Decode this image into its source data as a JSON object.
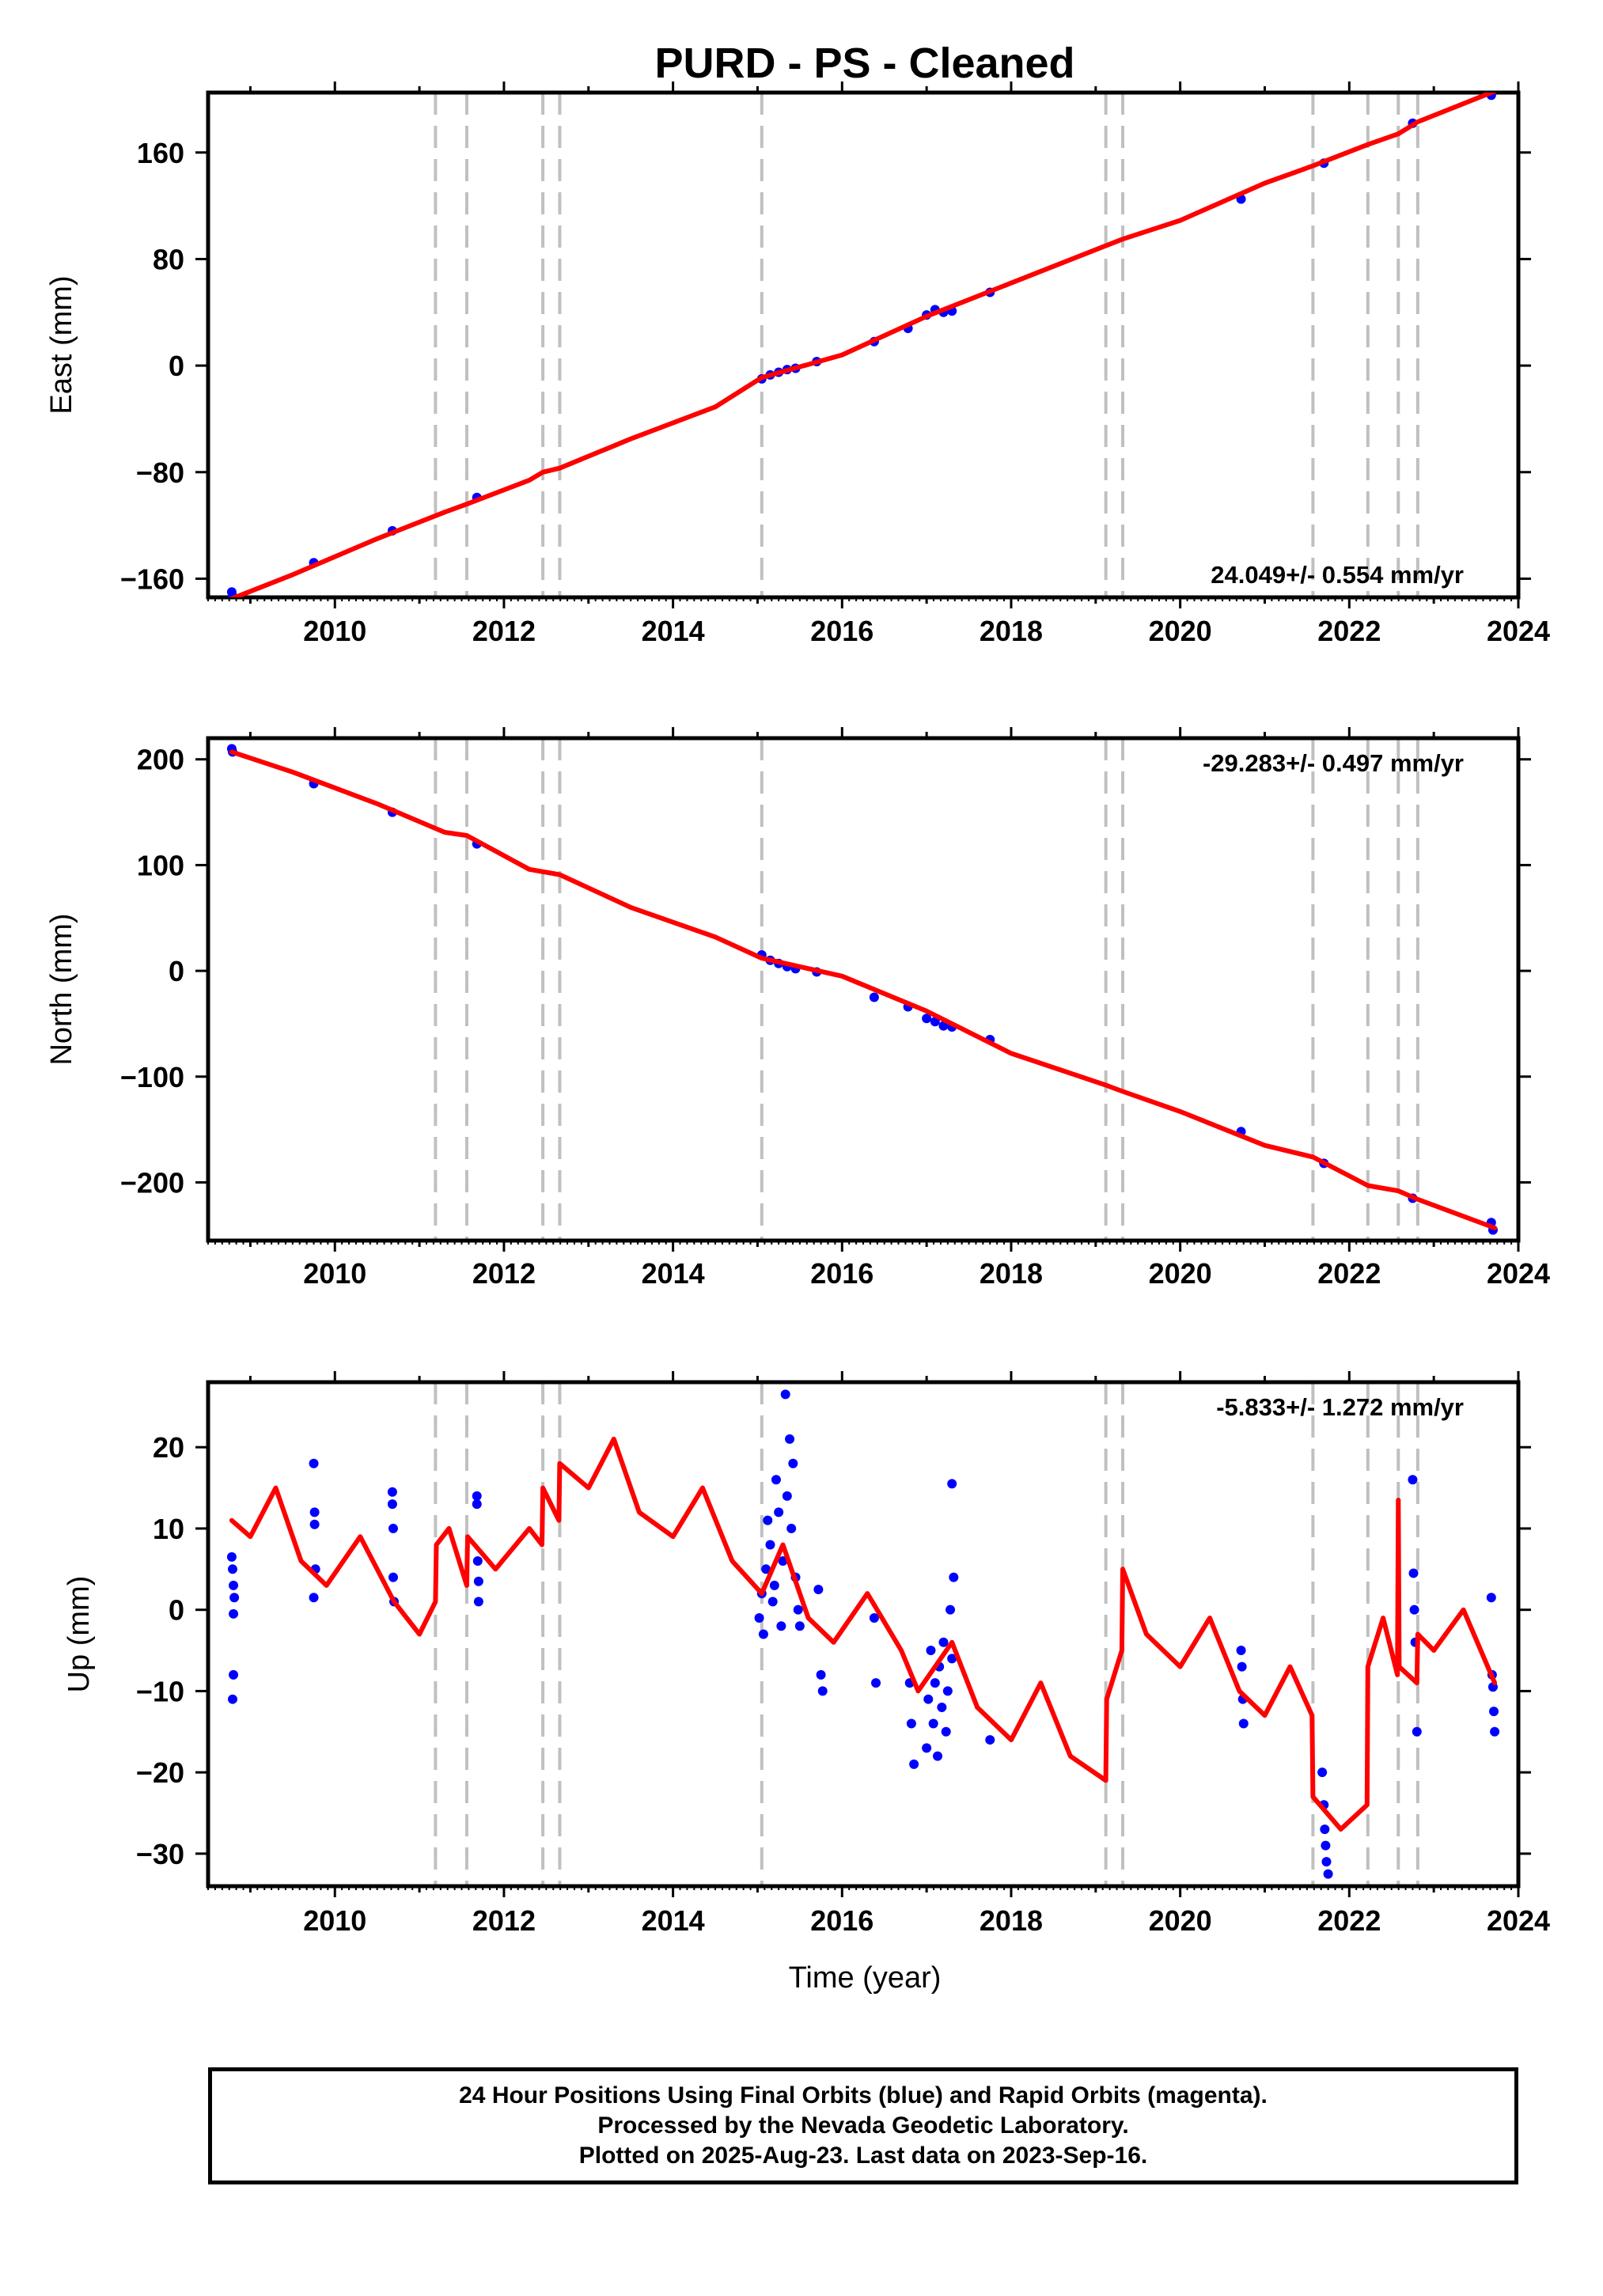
{
  "title": "PURD  - PS - Cleaned",
  "x_axis": {
    "label": "Time (year)",
    "ticks": [
      "2010",
      "2012",
      "2014",
      "2016",
      "2018",
      "2020",
      "2022",
      "2024"
    ],
    "range": [
      2008.5,
      2024.0
    ]
  },
  "colors": {
    "model": "#ff0000",
    "final_orbits": "#0000ff",
    "rapid_orbits": "#ff00ff",
    "steps": "#c0c0c0",
    "frame": "#000000"
  },
  "step_years": [
    2011.19,
    2011.56,
    2012.46,
    2012.66,
    2015.05,
    2019.12,
    2019.32,
    2021.57,
    2022.22,
    2022.58,
    2022.81
  ],
  "chart_data": [
    {
      "type": "scatter",
      "name": "east",
      "ylabel": "East (mm)",
      "ylim": [
        -174,
        205
      ],
      "yticks": [
        "−160",
        "−80",
        "0",
        "80",
        "160"
      ],
      "rate_label": "24.049+/- 0.554 mm/yr",
      "points": [
        [
          2008.78,
          -170
        ],
        [
          2008.79,
          -173
        ],
        [
          2009.75,
          -148
        ],
        [
          2010.68,
          -124
        ],
        [
          2011.68,
          -99
        ],
        [
          2015.05,
          -10
        ],
        [
          2015.15,
          -7
        ],
        [
          2015.25,
          -5
        ],
        [
          2015.35,
          -3
        ],
        [
          2015.45,
          -2
        ],
        [
          2015.7,
          3
        ],
        [
          2016.38,
          18
        ],
        [
          2016.78,
          28
        ],
        [
          2017.0,
          38
        ],
        [
          2017.1,
          42
        ],
        [
          2017.2,
          40
        ],
        [
          2017.3,
          41
        ],
        [
          2017.75,
          55
        ],
        [
          2020.72,
          125
        ],
        [
          2021.7,
          152
        ],
        [
          2022.75,
          182
        ],
        [
          2023.68,
          203
        ]
      ],
      "model": [
        [
          2008.78,
          -175
        ],
        [
          2009.5,
          -157
        ],
        [
          2010.5,
          -130
        ],
        [
          2011.3,
          -110
        ],
        [
          2011.56,
          -104
        ],
        [
          2012.3,
          -86
        ],
        [
          2012.46,
          -80
        ],
        [
          2012.66,
          -77
        ],
        [
          2013.5,
          -55
        ],
        [
          2014.5,
          -31
        ],
        [
          2015.05,
          -9
        ],
        [
          2016,
          8
        ],
        [
          2017,
          37
        ],
        [
          2018,
          62
        ],
        [
          2019.12,
          90
        ],
        [
          2019.32,
          95
        ],
        [
          2020,
          109
        ],
        [
          2021,
          137
        ],
        [
          2021.57,
          150
        ],
        [
          2022.22,
          166
        ],
        [
          2022.58,
          174
        ],
        [
          2022.81,
          183
        ],
        [
          2023.72,
          206
        ]
      ]
    },
    {
      "type": "scatter",
      "name": "north",
      "ylabel": "North (mm)",
      "ylim": [
        -255,
        220
      ],
      "yticks": [
        "−200",
        "−100",
        "0",
        "100",
        "200"
      ],
      "rate_label": "-29.283+/- 0.497 mm/yr",
      "points": [
        [
          2008.78,
          210
        ],
        [
          2008.79,
          207
        ],
        [
          2009.75,
          177
        ],
        [
          2010.68,
          150
        ],
        [
          2011.68,
          120
        ],
        [
          2015.05,
          15
        ],
        [
          2015.15,
          10
        ],
        [
          2015.25,
          7
        ],
        [
          2015.35,
          4
        ],
        [
          2015.45,
          2
        ],
        [
          2015.7,
          -1
        ],
        [
          2016.38,
          -25
        ],
        [
          2016.78,
          -34
        ],
        [
          2017.0,
          -45
        ],
        [
          2017.1,
          -48
        ],
        [
          2017.2,
          -52
        ],
        [
          2017.3,
          -53
        ],
        [
          2017.75,
          -65
        ],
        [
          2020.72,
          -152
        ],
        [
          2021.7,
          -182
        ],
        [
          2022.75,
          -215
        ],
        [
          2023.68,
          -238
        ],
        [
          2023.7,
          -245
        ]
      ],
      "model": [
        [
          2008.78,
          207
        ],
        [
          2009.5,
          188
        ],
        [
          2010.5,
          158
        ],
        [
          2011.3,
          131
        ],
        [
          2011.56,
          128
        ],
        [
          2012.3,
          96
        ],
        [
          2012.66,
          91
        ],
        [
          2013.5,
          60
        ],
        [
          2014.5,
          32
        ],
        [
          2015.05,
          12
        ],
        [
          2016,
          -5
        ],
        [
          2017,
          -38
        ],
        [
          2018,
          -78
        ],
        [
          2019.12,
          -108
        ],
        [
          2019.32,
          -114
        ],
        [
          2020,
          -133
        ],
        [
          2021,
          -165
        ],
        [
          2021.57,
          -176
        ],
        [
          2022.22,
          -203
        ],
        [
          2022.58,
          -208
        ],
        [
          2022.81,
          -216
        ],
        [
          2023.72,
          -243
        ]
      ]
    },
    {
      "type": "scatter",
      "name": "up",
      "ylabel": "Up (mm)",
      "ylim": [
        -34,
        28
      ],
      "yticks": [
        "−30",
        "−20",
        "−10",
        "0",
        "10",
        "20"
      ],
      "rate_label": "-5.833+/- 1.272 mm/yr",
      "points": [
        [
          2008.78,
          6.5
        ],
        [
          2008.79,
          5
        ],
        [
          2008.8,
          3
        ],
        [
          2008.81,
          1.5
        ],
        [
          2008.8,
          -0.5
        ],
        [
          2008.8,
          -8
        ],
        [
          2008.79,
          -11
        ],
        [
          2009.75,
          18
        ],
        [
          2009.76,
          12
        ],
        [
          2009.76,
          10.5
        ],
        [
          2009.77,
          5
        ],
        [
          2009.75,
          1.5
        ],
        [
          2010.68,
          14.5
        ],
        [
          2010.68,
          13
        ],
        [
          2010.69,
          10
        ],
        [
          2010.69,
          4
        ],
        [
          2010.7,
          1
        ],
        [
          2011.68,
          14
        ],
        [
          2011.68,
          13
        ],
        [
          2011.69,
          6
        ],
        [
          2011.7,
          3.5
        ],
        [
          2011.7,
          1
        ],
        [
          2015.02,
          -1
        ],
        [
          2015.05,
          2
        ],
        [
          2015.1,
          5
        ],
        [
          2015.15,
          8
        ],
        [
          2015.2,
          3
        ],
        [
          2015.25,
          12
        ],
        [
          2015.3,
          6
        ],
        [
          2015.35,
          14
        ],
        [
          2015.4,
          10
        ],
        [
          2015.45,
          4
        ],
        [
          2015.5,
          -2
        ],
        [
          2015.07,
          -3
        ],
        [
          2015.12,
          11
        ],
        [
          2015.18,
          1
        ],
        [
          2015.22,
          16
        ],
        [
          2015.28,
          -2
        ],
        [
          2015.33,
          26.5
        ],
        [
          2015.38,
          21
        ],
        [
          2015.42,
          18
        ],
        [
          2015.48,
          0
        ],
        [
          2015.72,
          2.5
        ],
        [
          2015.75,
          -8
        ],
        [
          2015.77,
          -10
        ],
        [
          2016.38,
          -1
        ],
        [
          2016.4,
          -9
        ],
        [
          2016.8,
          -9
        ],
        [
          2016.82,
          -14
        ],
        [
          2016.85,
          -19
        ],
        [
          2017.0,
          -17
        ],
        [
          2017.02,
          -11
        ],
        [
          2017.05,
          -5
        ],
        [
          2017.08,
          -14
        ],
        [
          2017.1,
          -9
        ],
        [
          2017.13,
          -18
        ],
        [
          2017.15,
          -7
        ],
        [
          2017.18,
          -12
        ],
        [
          2017.2,
          -4
        ],
        [
          2017.23,
          -15
        ],
        [
          2017.25,
          -10
        ],
        [
          2017.28,
          0
        ],
        [
          2017.3,
          -6
        ],
        [
          2017.32,
          4
        ],
        [
          2017.3,
          15.5
        ],
        [
          2017.75,
          -16
        ],
        [
          2020.72,
          -5
        ],
        [
          2020.73,
          -7
        ],
        [
          2020.74,
          -11
        ],
        [
          2020.75,
          -14
        ],
        [
          2021.68,
          -20
        ],
        [
          2021.7,
          -24
        ],
        [
          2021.71,
          -27
        ],
        [
          2021.72,
          -29
        ],
        [
          2021.73,
          -31
        ],
        [
          2021.75,
          -32.5
        ],
        [
          2022.75,
          16
        ],
        [
          2022.76,
          4.5
        ],
        [
          2022.77,
          0
        ],
        [
          2022.78,
          -4
        ],
        [
          2022.8,
          -15
        ],
        [
          2023.68,
          1.5
        ],
        [
          2023.69,
          -8
        ],
        [
          2023.7,
          -9.5
        ],
        [
          2023.71,
          -12.5
        ],
        [
          2023.72,
          -15
        ]
      ],
      "model": [
        [
          2008.78,
          11
        ],
        [
          2009.0,
          9
        ],
        [
          2009.3,
          15
        ],
        [
          2009.6,
          6
        ],
        [
          2009.9,
          3
        ],
        [
          2010.3,
          9
        ],
        [
          2010.7,
          1
        ],
        [
          2011.0,
          -3
        ],
        [
          2011.19,
          1
        ],
        [
          2011.2,
          8
        ],
        [
          2011.35,
          10
        ],
        [
          2011.56,
          3
        ],
        [
          2011.57,
          9
        ],
        [
          2011.9,
          5
        ],
        [
          2012.3,
          10
        ],
        [
          2012.45,
          8
        ],
        [
          2012.46,
          15
        ],
        [
          2012.65,
          11
        ],
        [
          2012.66,
          18
        ],
        [
          2013.0,
          15
        ],
        [
          2013.3,
          21
        ],
        [
          2013.6,
          12
        ],
        [
          2014.0,
          9
        ],
        [
          2014.35,
          15
        ],
        [
          2014.7,
          6
        ],
        [
          2015.05,
          2
        ],
        [
          2015.3,
          8
        ],
        [
          2015.6,
          -1
        ],
        [
          2015.9,
          -4
        ],
        [
          2016.3,
          2
        ],
        [
          2016.7,
          -5
        ],
        [
          2016.9,
          -10
        ],
        [
          2017.3,
          -4
        ],
        [
          2017.6,
          -12
        ],
        [
          2018.0,
          -16
        ],
        [
          2018.35,
          -9
        ],
        [
          2018.7,
          -18
        ],
        [
          2019.12,
          -21
        ],
        [
          2019.13,
          -11
        ],
        [
          2019.31,
          -5
        ],
        [
          2019.32,
          5
        ],
        [
          2019.6,
          -3
        ],
        [
          2020.0,
          -7
        ],
        [
          2020.35,
          -1
        ],
        [
          2020.7,
          -10
        ],
        [
          2021.0,
          -13
        ],
        [
          2021.3,
          -7
        ],
        [
          2021.56,
          -13
        ],
        [
          2021.57,
          -23
        ],
        [
          2021.9,
          -27
        ],
        [
          2022.21,
          -24
        ],
        [
          2022.22,
          -7
        ],
        [
          2022.4,
          -1
        ],
        [
          2022.57,
          -8
        ],
        [
          2022.58,
          13.5
        ],
        [
          2022.59,
          -7
        ],
        [
          2022.8,
          -9
        ],
        [
          2022.81,
          -3
        ],
        [
          2023.0,
          -5
        ],
        [
          2023.35,
          0
        ],
        [
          2023.72,
          -9
        ]
      ]
    }
  ],
  "footer": {
    "line1": "24 Hour Positions Using Final Orbits (blue) and Rapid Orbits (magenta).",
    "line2": "Processed by the Nevada Geodetic Laboratory.",
    "line3": "Plotted on 2025-Aug-23. Last data on 2023-Sep-16."
  }
}
